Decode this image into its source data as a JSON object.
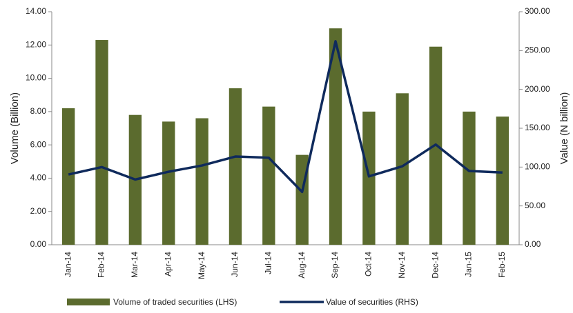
{
  "chart_data": {
    "type": "bar-line",
    "categories": [
      "Jan-14",
      "Feb-14",
      "Mar-14",
      "Apr-14",
      "May-14",
      "Jun-14",
      "Jul-14",
      "Aug-14",
      "Sep-14",
      "Oct-14",
      "Nov-14",
      "Dec-14",
      "Jan-15",
      "Feb-15"
    ],
    "series": [
      {
        "name": "Volume of traded securities (LHS)",
        "type": "bar",
        "color": "#5b6b2e",
        "axis": "y",
        "values": [
          8.2,
          12.3,
          7.8,
          7.4,
          7.6,
          9.4,
          8.3,
          5.4,
          13.0,
          8.0,
          9.1,
          11.9,
          8.0,
          7.7
        ]
      },
      {
        "name": "Value of securities (RHS)",
        "type": "line",
        "color": "#0f2a5c",
        "axis": "y2",
        "values": [
          90.5,
          100,
          84,
          94,
          102,
          113.6,
          112,
          68,
          262,
          88,
          101,
          129,
          95,
          93
        ]
      }
    ],
    "ylabel": "Volume (Billion)",
    "y2label": "Value (N billion)",
    "ylim": [
      0,
      14
    ],
    "yticks": [
      {
        "value": 0,
        "label": "0.00"
      },
      {
        "value": 2,
        "label": "2.00"
      },
      {
        "value": 4,
        "label": "4.00"
      },
      {
        "value": 6,
        "label": "6.00"
      },
      {
        "value": 8,
        "label": "8.00"
      },
      {
        "value": 10,
        "label": "10.00"
      },
      {
        "value": 12,
        "label": "12.00"
      },
      {
        "value": 14,
        "label": "14.00"
      }
    ],
    "y2lim": [
      0,
      300
    ],
    "y2ticks": [
      {
        "value": 0,
        "label": "0.00"
      },
      {
        "value": 50,
        "label": "50.00"
      },
      {
        "value": 100,
        "label": "100.00"
      },
      {
        "value": 150,
        "label": "150.00"
      },
      {
        "value": 200,
        "label": "200.00"
      },
      {
        "value": 250,
        "label": "250.00"
      },
      {
        "value": 300,
        "label": "300.00"
      }
    ],
    "grid": false
  }
}
